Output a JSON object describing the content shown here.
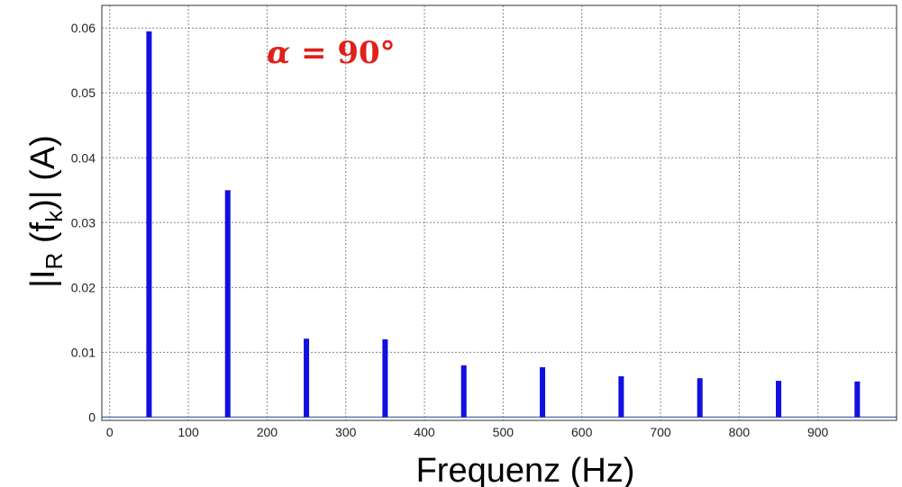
{
  "chart_data": {
    "type": "bar",
    "title": "",
    "annotation_prefix": "α",
    "annotation_suffix": " = 90°",
    "xlabel": "Frequenz (Hz)",
    "ylabel_main": "|I",
    "ylabel_sub": "R",
    "ylabel_mid": " (f",
    "ylabel_sub2": "k",
    "ylabel_tail": ")| (A)",
    "xlim": [
      -10,
      1000
    ],
    "ylim": [
      -0.0005,
      0.0635
    ],
    "xticks": [
      0,
      100,
      200,
      300,
      400,
      500,
      600,
      700,
      800,
      900
    ],
    "yticks": [
      0,
      0.01,
      0.02,
      0.03,
      0.04,
      0.05,
      0.06
    ],
    "ytick_labels": [
      "0",
      "0.01",
      "0.02",
      "0.03",
      "0.04",
      "0.05",
      "0.06"
    ],
    "grid": true,
    "bar_color": "#1010e0",
    "baseline_color": "#5a78b0",
    "annotation_color": "#e0201a",
    "x": [
      50,
      150,
      250,
      350,
      450,
      550,
      650,
      750,
      850,
      950
    ],
    "values": [
      0.0595,
      0.035,
      0.0121,
      0.012,
      0.008,
      0.0077,
      0.0063,
      0.006,
      0.0056,
      0.0055
    ]
  }
}
